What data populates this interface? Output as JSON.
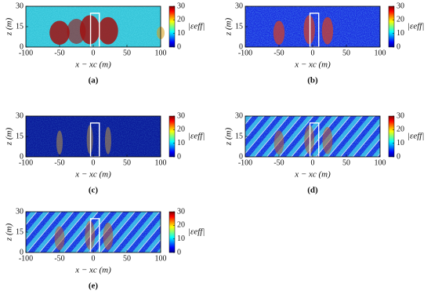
{
  "chart_data": [
    {
      "type": "heatmap",
      "label": "(a)",
      "xlabel": "x − xc (m)",
      "ylabel": "z (m)",
      "colorbar_label": "|εeff|",
      "xlim": [
        -100,
        100
      ],
      "ylim": [
        0,
        30
      ],
      "xticks": [
        -100,
        -50,
        0,
        50,
        100
      ],
      "yticks": [
        0,
        15,
        30
      ],
      "clim": [
        0,
        30
      ],
      "cticks": [
        0,
        10,
        20,
        30
      ]
    },
    {
      "type": "heatmap",
      "label": "(b)",
      "xlabel": "x − xc (m)",
      "ylabel": "z (m)",
      "colorbar_label": "|εeff|",
      "xlim": [
        -100,
        100
      ],
      "ylim": [
        0,
        30
      ],
      "xticks": [
        -100,
        -50,
        0,
        50,
        100
      ],
      "yticks": [
        0,
        15,
        30
      ],
      "clim": [
        0,
        30
      ],
      "cticks": [
        0,
        10,
        20,
        30
      ]
    },
    {
      "type": "heatmap",
      "label": "(c)",
      "xlabel": "x − xc (m)",
      "ylabel": "z (m)",
      "colorbar_label": "|εeff|",
      "xlim": [
        -100,
        100
      ],
      "ylim": [
        0,
        30
      ],
      "xticks": [
        -100,
        -50,
        0,
        50,
        100
      ],
      "yticks": [
        0,
        15,
        30
      ],
      "clim": [
        0,
        30
      ],
      "cticks": [
        0,
        10,
        20,
        30
      ]
    },
    {
      "type": "heatmap",
      "label": "(d)",
      "xlabel": "x − xc (m)",
      "ylabel": "z (m)",
      "colorbar_label": "|εeff|",
      "xlim": [
        -100,
        100
      ],
      "ylim": [
        0,
        30
      ],
      "xticks": [
        -100,
        -50,
        0,
        50,
        100
      ],
      "yticks": [
        0,
        15,
        30
      ],
      "clim": [
        0,
        30
      ],
      "cticks": [
        0,
        10,
        20,
        30
      ]
    },
    {
      "type": "heatmap",
      "label": "(e)",
      "xlabel": "x − xc (m)",
      "ylabel": "z (m)",
      "colorbar_label": "|εeff|",
      "xlim": [
        -100,
        100
      ],
      "ylim": [
        0,
        30
      ],
      "xticks": [
        -100,
        -50,
        0,
        50,
        100
      ],
      "yticks": [
        0,
        15,
        30
      ],
      "clim": [
        0,
        30
      ],
      "cticks": [
        0,
        10,
        20,
        30
      ]
    }
  ]
}
